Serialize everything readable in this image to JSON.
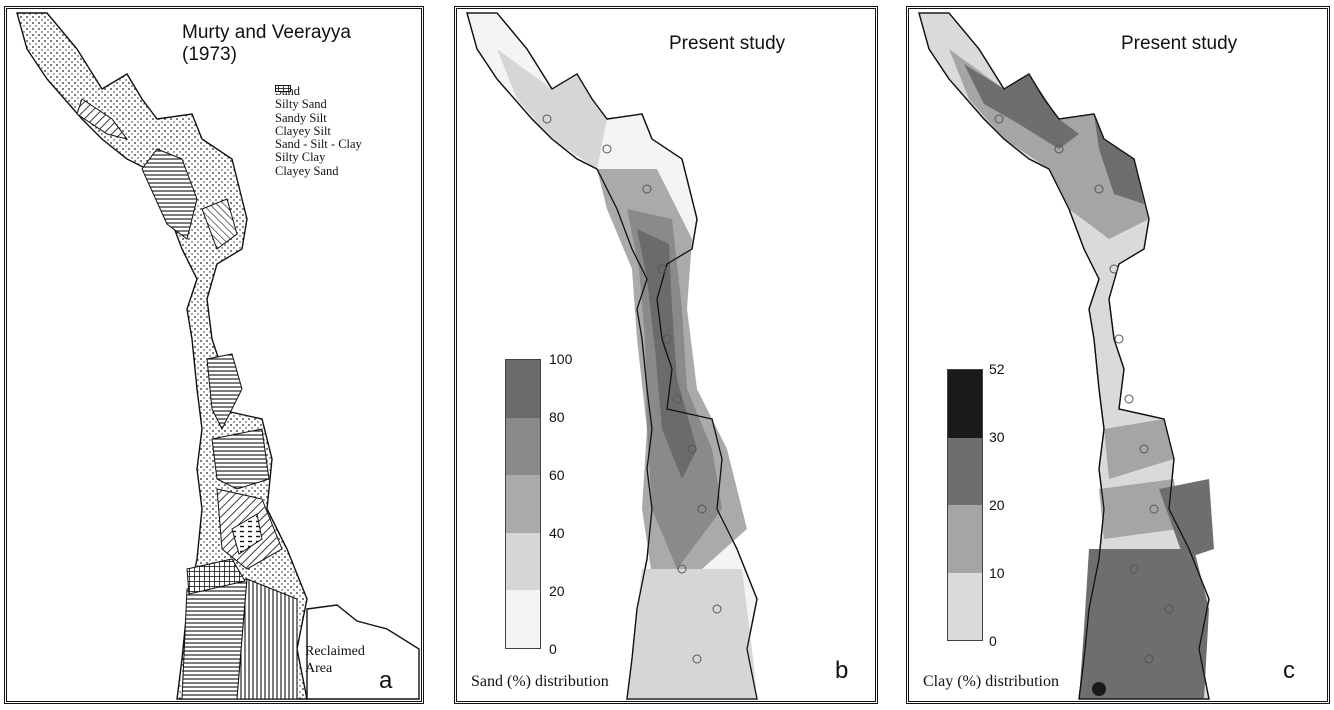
{
  "panels": [
    {
      "id": "a",
      "title_line1": "Murty and Veerayya",
      "title_line2": "(1973)",
      "legend": [
        {
          "label": "Sand",
          "pattern": "dots"
        },
        {
          "label": "Silty Sand",
          "pattern": "hlines"
        },
        {
          "label": "Sandy Silt",
          "pattern": "vlines"
        },
        {
          "label": "Clayey Silt",
          "pattern": "diag"
        },
        {
          "label": "Sand - Silt - Clay",
          "pattern": "dashes"
        },
        {
          "label": "Silty Clay",
          "pattern": "backdiag"
        },
        {
          "label": "Clayey Sand",
          "pattern": "cross"
        }
      ],
      "annotation_line1": "Reclaimed",
      "annotation_line2": "Area",
      "letter": "a"
    },
    {
      "id": "b",
      "title": "Present study",
      "scale_ticks": [
        "100",
        "80",
        "60",
        "40",
        "20",
        "0"
      ],
      "scale_colors": [
        "#6b6b6b",
        "#8a8a8a",
        "#aaaaaa",
        "#d6d6d6",
        "#f4f4f4"
      ],
      "caption": "Sand (%) distribution",
      "letter": "b"
    },
    {
      "id": "c",
      "title": "Present study",
      "scale_ticks": [
        "52",
        "30",
        "20",
        "10",
        "0"
      ],
      "scale_colors": [
        "#1a1a1a",
        "#6e6e6e",
        "#a5a5a5",
        "#dadada"
      ],
      "caption": "Clay (%) distribution",
      "letter": "c"
    }
  ]
}
